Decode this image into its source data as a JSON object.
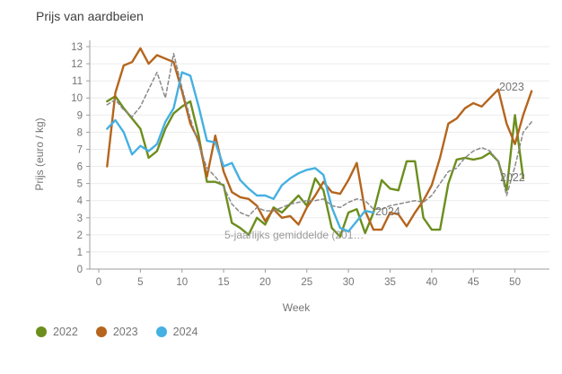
{
  "title": "Prijs van aardbeien",
  "axes": {
    "y_title": "Prijs (euro / kg)",
    "x_title": "Week"
  },
  "legend": [
    {
      "label": "2022",
      "color": "#6C8E1D"
    },
    {
      "label": "2023",
      "color": "#B5651D"
    },
    {
      "label": "2024",
      "color": "#45B0E2"
    }
  ],
  "annotations": {
    "label_2023": "2023",
    "label_2022": "2022",
    "label_2024": "2024",
    "label_avg": "5-jaarlijks gemiddelde (201…"
  },
  "colors": {
    "grid": "#ebebeb",
    "axis": "#9e9e9e",
    "tick_text": "#757575",
    "title_text": "#3f3f3f",
    "avg_line": "#8a8a8a"
  },
  "chart_data": {
    "type": "line",
    "title": "Prijs van aardbeien",
    "xlabel": "Week",
    "ylabel": "Prijs (euro / kg)",
    "xlim": [
      0,
      53
    ],
    "ylim": [
      0,
      13
    ],
    "grid": "horizontal",
    "legend_position": "bottom-left",
    "x_ticks": [
      0,
      5,
      10,
      15,
      20,
      25,
      30,
      35,
      40,
      45,
      50
    ],
    "y_ticks": [
      0,
      1,
      2,
      3,
      4,
      5,
      6,
      7,
      8,
      9,
      10,
      11,
      12,
      13
    ],
    "series": [
      {
        "name": "2022",
        "color": "#6C8E1D",
        "style": "solid",
        "start_week": 1,
        "values": [
          9.8,
          10.1,
          9.4,
          8.8,
          8.2,
          6.5,
          6.9,
          8.2,
          9.1,
          9.5,
          9.8,
          7.8,
          5.1,
          5.1,
          4.9,
          2.7,
          2.4,
          2.0,
          3.0,
          2.6,
          3.6,
          3.3,
          3.8,
          4.3,
          3.7,
          5.3,
          4.6,
          2.4,
          1.9,
          3.3,
          3.5,
          2.1,
          3.3,
          5.2,
          4.7,
          4.6,
          6.3,
          6.3,
          3.0,
          2.3,
          2.3,
          5.0,
          6.4,
          6.5,
          6.4,
          6.5,
          6.8,
          6.3,
          4.6,
          9.0,
          5.3
        ]
      },
      {
        "name": "2023",
        "color": "#B5651D",
        "style": "solid",
        "start_week": 1,
        "values": [
          6.0,
          10.3,
          11.9,
          12.1,
          12.9,
          12.0,
          12.5,
          12.3,
          12.1,
          10.4,
          8.5,
          7.5,
          5.4,
          7.8,
          5.7,
          4.5,
          4.2,
          4.1,
          3.7,
          2.8,
          3.5,
          3.0,
          3.1,
          2.6,
          3.6,
          4.3,
          5.1,
          4.5,
          4.4,
          5.2,
          6.2,
          3.4,
          2.3,
          2.3,
          3.3,
          3.2,
          2.5,
          3.3,
          4.0,
          4.9,
          6.5,
          8.5,
          8.8,
          9.4,
          9.7,
          9.5,
          10.0,
          10.5,
          8.5,
          7.3,
          9.0,
          10.4
        ]
      },
      {
        "name": "2024",
        "color": "#45B0E2",
        "style": "solid",
        "start_week": 1,
        "values": [
          8.2,
          8.7,
          8.0,
          6.7,
          7.2,
          6.9,
          7.3,
          8.6,
          9.4,
          11.5,
          11.3,
          9.5,
          7.5,
          7.4,
          6.0,
          6.2,
          5.2,
          4.7,
          4.3,
          4.3,
          4.1,
          4.9,
          5.3,
          5.6,
          5.8,
          5.9,
          5.5,
          3.6,
          2.4,
          2.2,
          2.8,
          3.4,
          3.3
        ]
      },
      {
        "name": "5-jaarlijks gemiddelde",
        "color": "#8a8a8a",
        "style": "dashed",
        "start_week": 1,
        "values": [
          9.6,
          9.9,
          9.3,
          8.9,
          9.5,
          10.5,
          11.5,
          10.0,
          12.6,
          10.6,
          8.8,
          7.3,
          5.9,
          5.4,
          4.8,
          3.8,
          3.3,
          3.1,
          3.6,
          3.4,
          3.4,
          3.6,
          3.8,
          3.9,
          4.0,
          4.0,
          4.1,
          3.7,
          3.6,
          3.9,
          4.1,
          4.0,
          3.5,
          3.5,
          3.7,
          3.8,
          3.9,
          4.0,
          3.9,
          4.3,
          5.0,
          5.7,
          5.9,
          6.5,
          6.9,
          7.1,
          6.9,
          6.3,
          4.3,
          6.0,
          8.0,
          8.6
        ]
      }
    ]
  }
}
